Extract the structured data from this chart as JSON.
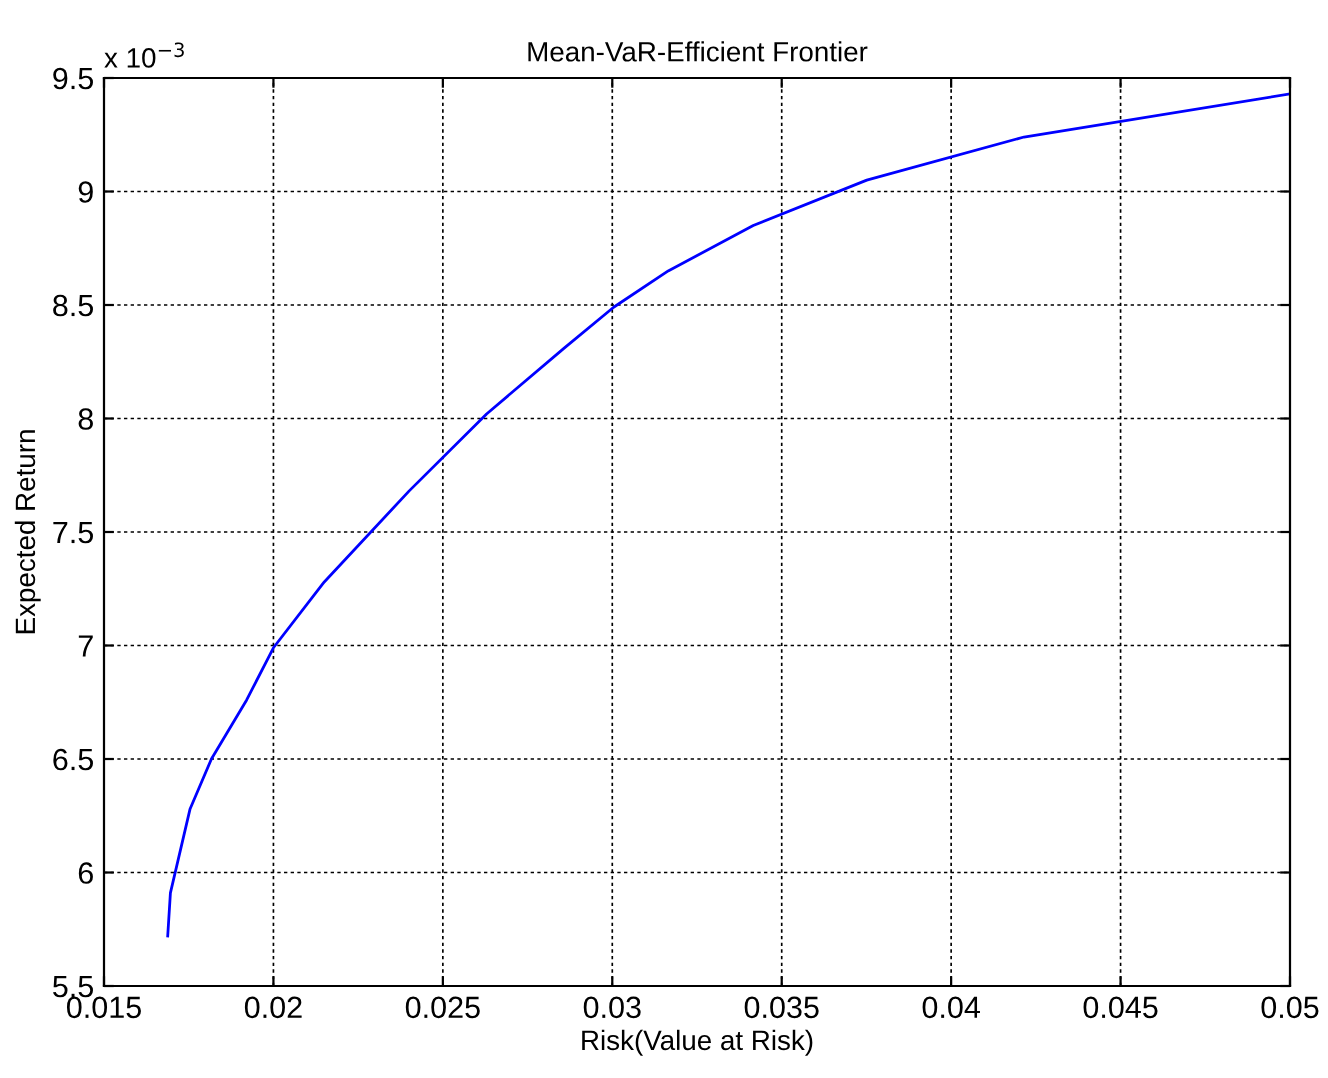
{
  "chart_data": {
    "type": "line",
    "title": "Mean-VaR-Efficient Frontier",
    "xlabel": "Risk(Value at Risk)",
    "ylabel": "Expected Return",
    "annotations": [
      "x 10$^{−3}$"
    ],
    "x": [
      0.01688,
      0.01696,
      0.01754,
      0.01817,
      0.01921,
      0.02,
      0.0215,
      0.024,
      0.02629,
      0.02858,
      0.03004,
      0.03165,
      0.03416,
      0.03751,
      0.04215,
      0.05
    ],
    "series": [
      {
        "color": "#0000ff",
        "values": [
          5.72,
          5.91,
          6.28,
          6.5,
          6.76,
          6.99,
          7.28,
          7.68,
          8.02,
          8.31,
          8.49,
          8.65,
          8.85,
          9.05,
          9.24,
          9.43
        ]
      }
    ],
    "xlim": [
      0.015,
      0.05
    ],
    "xticks": [
      0.015,
      0.02,
      0.025,
      0.03,
      0.035,
      0.04,
      0.045,
      0.05
    ],
    "ylim": [
      5.5,
      9.5
    ],
    "yticks": [
      5.5,
      6,
      6.5,
      7,
      7.5,
      8,
      8.5,
      9,
      9.5
    ],
    "grid": true,
    "marker": "none",
    "line_style": "solid"
  }
}
